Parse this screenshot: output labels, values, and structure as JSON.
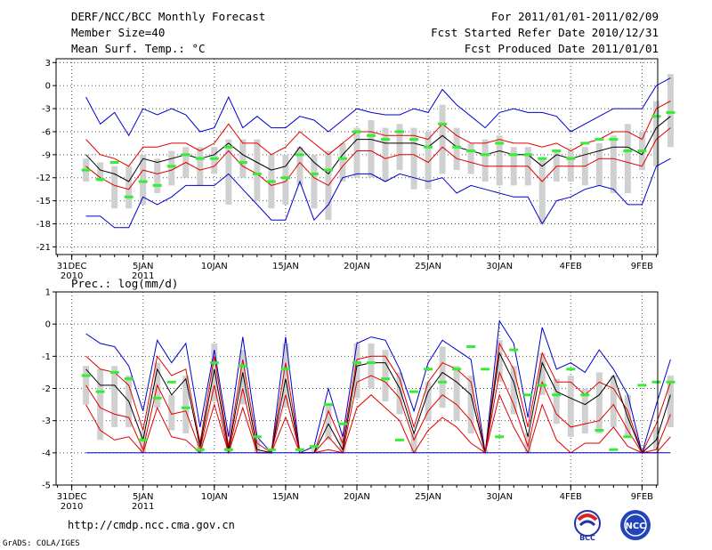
{
  "header": {
    "title": "DERF/NCC/BCC Monthly Forecast",
    "member_size": "Member Size=40",
    "variable1": "Mean Surf. Temp.: °C",
    "period": "For 2011/01/01-2011/02/09",
    "fcst_started": "Fcst Started Refer Date 2010/12/31",
    "fcst_produced": "Fcst Produced Date 2011/01/01"
  },
  "footer": {
    "url": "http://cmdp.ncc.cma.gov.cn",
    "grads": "GrADS: COLA/IGES",
    "logo_bcc": "BCC",
    "logo_ncc": "NCC"
  },
  "colors": {
    "ensemble_extreme": "#0000cc",
    "ensemble_spread": "#e00000",
    "ensemble_mean": "#000000",
    "observed": "#33ee33",
    "box": "#d0d0d0",
    "grid": "#555555"
  },
  "chart_data": [
    {
      "type": "line",
      "title": "Mean Surf. Temp.: °C",
      "x_tick_labels": [
        "31DEC",
        "5JAN",
        "10JAN",
        "15JAN",
        "20JAN",
        "25JAN",
        "30JAN",
        "4FEB",
        "9FEB"
      ],
      "x_tick_days": [
        0,
        5,
        10,
        15,
        20,
        25,
        30,
        35,
        40
      ],
      "x_year_labels": [
        {
          "day": 0,
          "label": "2010"
        },
        {
          "day": 5,
          "label": "2011"
        }
      ],
      "y_ticks": [
        3,
        0,
        -3,
        -6,
        -9,
        -12,
        -15,
        -18,
        -21
      ],
      "ylim": [
        -22,
        3.5
      ],
      "xlim": [
        -1.1,
        41.1
      ],
      "days_start": 1,
      "series": [
        {
          "name": "max",
          "color_key": "ensemble_extreme",
          "values": [
            -1.5,
            -5,
            -3.5,
            -6.5,
            -3,
            -3.8,
            -3,
            -3.8,
            -6,
            -5.5,
            -1.5,
            -5.5,
            -4,
            -5.5,
            -5.5,
            -4,
            -4.5,
            -6,
            -4.5,
            -3,
            -3.5,
            -3.8,
            -3.8,
            -3,
            -3.5,
            -0.5,
            -2.5,
            -4,
            -5.5,
            -3.5,
            -3,
            -3.5,
            -3.5,
            -4,
            -6,
            -5,
            -4,
            -3,
            -3,
            -3,
            0,
            1
          ]
        },
        {
          "name": "upper",
          "color_key": "ensemble_spread",
          "values": [
            -7,
            -9,
            -9.5,
            -10.5,
            -8,
            -8,
            -7.5,
            -7.5,
            -8.5,
            -7.5,
            -5,
            -7.5,
            -7.5,
            -9,
            -8,
            -6,
            -7.5,
            -9,
            -7.5,
            -6,
            -6,
            -6.5,
            -6.5,
            -6.5,
            -7,
            -5,
            -6.5,
            -7.5,
            -7.5,
            -7,
            -7.5,
            -7.5,
            -8,
            -7.5,
            -8.5,
            -7.5,
            -7,
            -6,
            -6,
            -7,
            -3,
            -2
          ]
        },
        {
          "name": "mean",
          "color_key": "ensemble_mean",
          "values": [
            -9,
            -11,
            -11.5,
            -12.5,
            -9.5,
            -10,
            -9.5,
            -9,
            -9.5,
            -9,
            -7.5,
            -9,
            -10,
            -11,
            -10.5,
            -8,
            -10,
            -11.5,
            -9,
            -7,
            -7,
            -7.5,
            -7.5,
            -7.5,
            -8,
            -6.5,
            -8,
            -8.5,
            -9,
            -8.5,
            -9,
            -9,
            -10.5,
            -9,
            -9.5,
            -9,
            -8.5,
            -8,
            -8,
            -9,
            -5.5,
            -4
          ]
        },
        {
          "name": "lower",
          "color_key": "ensemble_spread",
          "values": [
            -10.5,
            -12,
            -13,
            -13.5,
            -11,
            -11.5,
            -11,
            -10,
            -11,
            -10.5,
            -8.5,
            -10.5,
            -11.5,
            -13,
            -12.5,
            -10,
            -12,
            -13,
            -10.5,
            -8.5,
            -8.5,
            -9.5,
            -9,
            -9,
            -10,
            -8,
            -9.5,
            -10,
            -10.5,
            -10.5,
            -10.5,
            -10.5,
            -12.5,
            -10.5,
            -10.5,
            -10.5,
            -9.5,
            -9.5,
            -10,
            -10.5,
            -7,
            -5.5
          ]
        },
        {
          "name": "min",
          "color_key": "ensemble_extreme",
          "values": [
            -17,
            -17,
            -18.5,
            -18.5,
            -14.5,
            -15.5,
            -14.5,
            -13,
            -13,
            -13,
            -11.5,
            -13.5,
            -15.5,
            -17.5,
            -17.5,
            -12.5,
            -17.5,
            -15.5,
            -12,
            -11.5,
            -11.5,
            -12.5,
            -11.5,
            -12,
            -12.5,
            -12,
            -14,
            -13,
            -13.5,
            -14,
            -14.5,
            -14.5,
            -18,
            -15,
            -14.5,
            -13.5,
            -13,
            -13.5,
            -15.5,
            -15.5,
            -10.5,
            -9.5
          ]
        }
      ],
      "boxes": [
        [
          -12.5,
          -9.5
        ],
        [
          -12.5,
          -10
        ],
        [
          -16,
          -10.5
        ],
        [
          -16,
          -10.5
        ],
        [
          -15.5,
          -9
        ],
        [
          -14,
          -9.5
        ],
        [
          -13,
          -8.5
        ],
        [
          -12,
          -8
        ],
        [
          -13,
          -8
        ],
        [
          -11.5,
          -8
        ],
        [
          -15.5,
          -7
        ],
        [
          -12,
          -7
        ],
        [
          -15,
          -7
        ],
        [
          -16,
          -9
        ],
        [
          -15.5,
          -9
        ],
        [
          -13,
          -8
        ],
        [
          -16,
          -9
        ],
        [
          -17.5,
          -8.5
        ],
        [
          -12.5,
          -7.5
        ],
        [
          -12,
          -5.5
        ],
        [
          -12,
          -4.5
        ],
        [
          -12.5,
          -5.5
        ],
        [
          -11,
          -5
        ],
        [
          -13.5,
          -5.5
        ],
        [
          -13.5,
          -6
        ],
        [
          -11.5,
          -2.5
        ],
        [
          -11,
          -5.5
        ],
        [
          -11.5,
          -7.5
        ],
        [
          -12.5,
          -7
        ],
        [
          -13,
          -6.5
        ],
        [
          -13,
          -8
        ],
        [
          -13,
          -8
        ],
        [
          -18,
          -9.5
        ],
        [
          -12.5,
          -8.5
        ],
        [
          -12.5,
          -8.5
        ],
        [
          -13,
          -8
        ],
        [
          -13,
          -7.5
        ],
        [
          -14,
          -6.5
        ],
        [
          -14,
          -5
        ],
        [
          -11,
          -6
        ],
        [
          -10.5,
          -2
        ],
        [
          -8,
          1.5
        ]
      ],
      "observed": [
        -11,
        -12.2,
        -10,
        -14.5,
        -12.5,
        -13,
        -10.5,
        -9,
        -9.5,
        -9.5,
        -8,
        -10,
        -11.5,
        -12.5,
        -12,
        -9,
        -11.5,
        -11,
        -9.5,
        -6,
        -6.5,
        -7,
        -6,
        -7,
        -8,
        -5,
        -8,
        -8.5,
        -9,
        -7.5,
        -9,
        -9,
        -9.5,
        -8.5,
        -9.5,
        -7.5,
        -7,
        -7,
        -8.5,
        -8.5,
        -4,
        -3.5
      ]
    },
    {
      "type": "line",
      "title": "Prec.: log(mm/d)",
      "x_tick_labels": [
        "31DEC",
        "5JAN",
        "10JAN",
        "15JAN",
        "20JAN",
        "25JAN",
        "30JAN",
        "4FEB",
        "9FEB"
      ],
      "x_tick_days": [
        0,
        5,
        10,
        15,
        20,
        25,
        30,
        35,
        40
      ],
      "x_year_labels": [
        {
          "day": 0,
          "label": "2010"
        },
        {
          "day": 5,
          "label": "2011"
        }
      ],
      "y_ticks": [
        1,
        0,
        -1,
        -2,
        -3,
        -4,
        -5
      ],
      "ylim": [
        -5,
        1
      ],
      "xlim": [
        -1.1,
        41.1
      ],
      "days_start": 1,
      "series": [
        {
          "name": "max",
          "color_key": "ensemble_extreme",
          "values": [
            -0.3,
            -0.6,
            -0.7,
            -1.3,
            -2.7,
            -0.5,
            -1.2,
            -0.6,
            -3.2,
            -0.8,
            -3.5,
            -0.4,
            -3.5,
            -4,
            -0.4,
            -4,
            -3.8,
            -2,
            -3.5,
            -0.6,
            -0.4,
            -0.5,
            -1.4,
            -2.7,
            -1.2,
            -0.5,
            -0.8,
            -1.1,
            -4,
            0.1,
            -0.6,
            -2.9,
            -0.1,
            -1.4,
            -1.2,
            -1.5,
            -0.8,
            -1.4,
            -2.2,
            -4,
            -2.5,
            -1.1
          ]
        },
        {
          "name": "upper",
          "color_key": "ensemble_spread",
          "values": [
            -1,
            -1.4,
            -1.5,
            -1.9,
            -3.3,
            -1,
            -1.6,
            -1.4,
            -3.7,
            -1,
            -3.8,
            -1.1,
            -3.7,
            -4,
            -1.2,
            -4,
            -4,
            -2.7,
            -3.7,
            -1.1,
            -1,
            -1,
            -1.7,
            -3.2,
            -1.8,
            -1.2,
            -1.4,
            -1.8,
            -4,
            -0.6,
            -1.4,
            -3.2,
            -0.9,
            -1.8,
            -1.8,
            -2.2,
            -1.8,
            -2,
            -2.7,
            -4,
            -3.1,
            -1.8
          ]
        },
        {
          "name": "mean",
          "color_key": "ensemble_mean",
          "values": [
            -1.4,
            -1.9,
            -1.9,
            -2.4,
            -3.6,
            -1.4,
            -2.2,
            -1.7,
            -3.8,
            -1.4,
            -3.9,
            -1.5,
            -3.9,
            -4,
            -1.7,
            -4,
            -4,
            -3.1,
            -3.9,
            -1.3,
            -1.2,
            -1.2,
            -2,
            -3.4,
            -2.1,
            -1.5,
            -1.8,
            -2.2,
            -4,
            -0.9,
            -1.8,
            -3.5,
            -1.2,
            -2.1,
            -2.3,
            -2.5,
            -2.2,
            -1.6,
            -2.9,
            -4,
            -3.6,
            -2.2
          ]
        },
        {
          "name": "lower",
          "color_key": "ensemble_spread",
          "values": [
            -1.9,
            -2.6,
            -2.8,
            -2.9,
            -3.9,
            -1.9,
            -2.8,
            -2.7,
            -3.9,
            -1.9,
            -4,
            -2,
            -4,
            -4,
            -2.2,
            -4,
            -4,
            -3.5,
            -4,
            -1.8,
            -1.6,
            -1.8,
            -2.3,
            -3.6,
            -2.7,
            -2.2,
            -2.5,
            -3,
            -4,
            -1.5,
            -2.5,
            -3.8,
            -1.8,
            -2.8,
            -3.2,
            -3.1,
            -3,
            -2.5,
            -3.3,
            -4,
            -3.9,
            -2.8
          ]
        },
        {
          "name": "lowest",
          "color_key": "ensemble_spread",
          "values": [
            -2.5,
            -3.3,
            -3.6,
            -3.5,
            -4,
            -2.6,
            -3.5,
            -3.6,
            -4,
            -2.5,
            -4,
            -2.6,
            -4,
            -4,
            -2.9,
            -4,
            -4,
            -3.9,
            -4,
            -2.6,
            -2.2,
            -2.6,
            -3,
            -4,
            -3.3,
            -2.9,
            -3.2,
            -3.7,
            -4,
            -2.2,
            -3.2,
            -4,
            -2.5,
            -3.6,
            -4,
            -3.7,
            -3.7,
            -3.2,
            -3.8,
            -4,
            -4,
            -3.5
          ]
        },
        {
          "name": "min",
          "color_key": "ensemble_extreme",
          "values": [
            -4,
            -4,
            -4,
            -4,
            -4,
            -4,
            -4,
            -4,
            -4,
            -4,
            -4,
            -4,
            -4,
            -4,
            -4,
            -4,
            -4,
            -4,
            -4,
            -4,
            -4,
            -4,
            -4,
            -4,
            -4,
            -4,
            -4,
            -4,
            -4,
            -4,
            -4,
            -4,
            -4,
            -4,
            -4,
            -4,
            -4,
            -4,
            -4,
            -4,
            -4,
            -4
          ]
        }
      ],
      "boxes": [
        [
          -2.5,
          -1.3
        ],
        [
          -3.6,
          -1.4
        ],
        [
          -3.2,
          -1.3
        ],
        [
          -3.2,
          -1.6
        ],
        [
          -4,
          -3.3
        ],
        [
          -2.6,
          -1.2
        ],
        [
          -3.3,
          -2.2
        ],
        [
          -3.4,
          -1.6
        ],
        [
          -4,
          -3.5
        ],
        [
          -2.4,
          -0.6
        ],
        [
          -4,
          -3.8
        ],
        [
          -2.5,
          -0.8
        ],
        [
          -4,
          -3.6
        ],
        [
          -4,
          -4
        ],
        [
          -2.6,
          -0.6
        ],
        [
          -4,
          -4
        ],
        [
          -4,
          -3.8
        ],
        [
          -3.6,
          -2.5
        ],
        [
          -4,
          -3.5
        ],
        [
          -2.3,
          -0.6
        ],
        [
          -2,
          -0.6
        ],
        [
          -2.4,
          -0.8
        ],
        [
          -2.8,
          -1.5
        ],
        [
          -4,
          -3.4
        ],
        [
          -3,
          -1.8
        ],
        [
          -2.6,
          -0.7
        ],
        [
          -3,
          -1.3
        ],
        [
          -3.4,
          -1.6
        ],
        [
          -4,
          -3.9
        ],
        [
          -1.8,
          -0.5
        ],
        [
          -2.8,
          -1.3
        ],
        [
          -4,
          -3.4
        ],
        [
          -2.2,
          -0.9
        ],
        [
          -3.1,
          -1.7
        ],
        [
          -3.5,
          -1.6
        ],
        [
          -3.4,
          -2
        ],
        [
          -3.4,
          -1.5
        ],
        [
          -3.2,
          -1.6
        ],
        [
          -3.5,
          -2.2
        ],
        [
          -4,
          -3.9
        ],
        [
          -3.9,
          -3.2
        ],
        [
          -3.2,
          -1.6
        ]
      ],
      "observed": [
        -1.6,
        -2.1,
        -1.5,
        -1.7,
        -3.6,
        -2.3,
        -1.8,
        -2.6,
        -3.9,
        -1.2,
        -3.9,
        -1.3,
        -3.5,
        -3.9,
        -1.4,
        -3.9,
        -3.8,
        -2.5,
        -3.1,
        -1.2,
        -1.2,
        -1.7,
        -3.6,
        -2.1,
        -1.4,
        -1.8,
        -1.4,
        -0.7,
        -1.4,
        -3.5,
        -0.8,
        -2.2,
        -1.9,
        -2.2,
        -1.4,
        -2.2,
        -3.3,
        -3.9,
        -3.5,
        -1.9,
        -1.8,
        -1.8
      ]
    }
  ]
}
